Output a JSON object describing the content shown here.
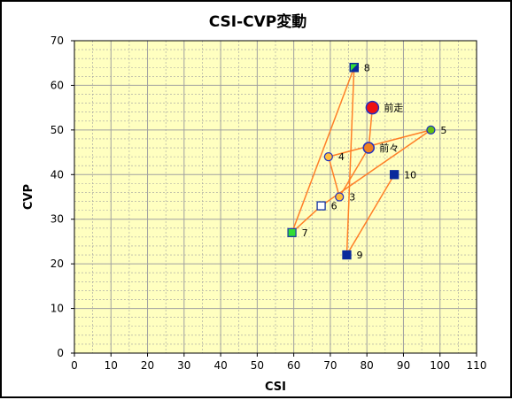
{
  "chart_data": {
    "type": "scatter",
    "title": "CSI-CVP変動",
    "xlabel": "CSI",
    "ylabel": "CVP",
    "xlim": [
      0,
      110
    ],
    "ylim": [
      0,
      70
    ],
    "x_major_step": 10,
    "y_major_step": 10,
    "x_minor_step": 5,
    "y_minor_step": 2,
    "grid": true,
    "legend": false,
    "colors": {
      "plot_bg": "#FFFFC0",
      "grid": "#A0A0A0",
      "line": "#FF7F27",
      "square_dark": "#0A2A9C",
      "square_green": "#33DD33",
      "square_green_border": "#2040A0",
      "square_outline": "#1030A0",
      "circle_red": "#EE1111",
      "circle_orange": "#F08020",
      "circle_yellow": "#FFBE3C",
      "circle_green": "#66C010",
      "circle_border": "#2030C0"
    },
    "path_order": [
      "前走",
      "前々",
      "3",
      "4",
      "5",
      "6",
      "7",
      "8",
      "9",
      "10"
    ],
    "points": [
      {
        "label": "前走",
        "x": 81.5,
        "y": 55,
        "marker": "circle-large",
        "color": "red"
      },
      {
        "label": "前々",
        "x": 80.5,
        "y": 46,
        "marker": "circle-medium",
        "color": "orange"
      },
      {
        "label": "3",
        "x": 72.5,
        "y": 35,
        "marker": "circle-small",
        "color": "yellow"
      },
      {
        "label": "4",
        "x": 69.5,
        "y": 44,
        "marker": "circle-small",
        "color": "yellow"
      },
      {
        "label": "5",
        "x": 97.5,
        "y": 50,
        "marker": "circle-small",
        "color": "green"
      },
      {
        "label": "6",
        "x": 67.5,
        "y": 33,
        "marker": "square-outline",
        "color": "outline"
      },
      {
        "label": "7",
        "x": 59.5,
        "y": 27,
        "marker": "square",
        "color": "green"
      },
      {
        "label": "8",
        "x": 76.5,
        "y": 64,
        "marker": "square-split",
        "color": "dark"
      },
      {
        "label": "9",
        "x": 74.5,
        "y": 22,
        "marker": "square",
        "color": "dark"
      },
      {
        "label": "10",
        "x": 87.5,
        "y": 40,
        "marker": "square",
        "color": "dark"
      }
    ]
  }
}
